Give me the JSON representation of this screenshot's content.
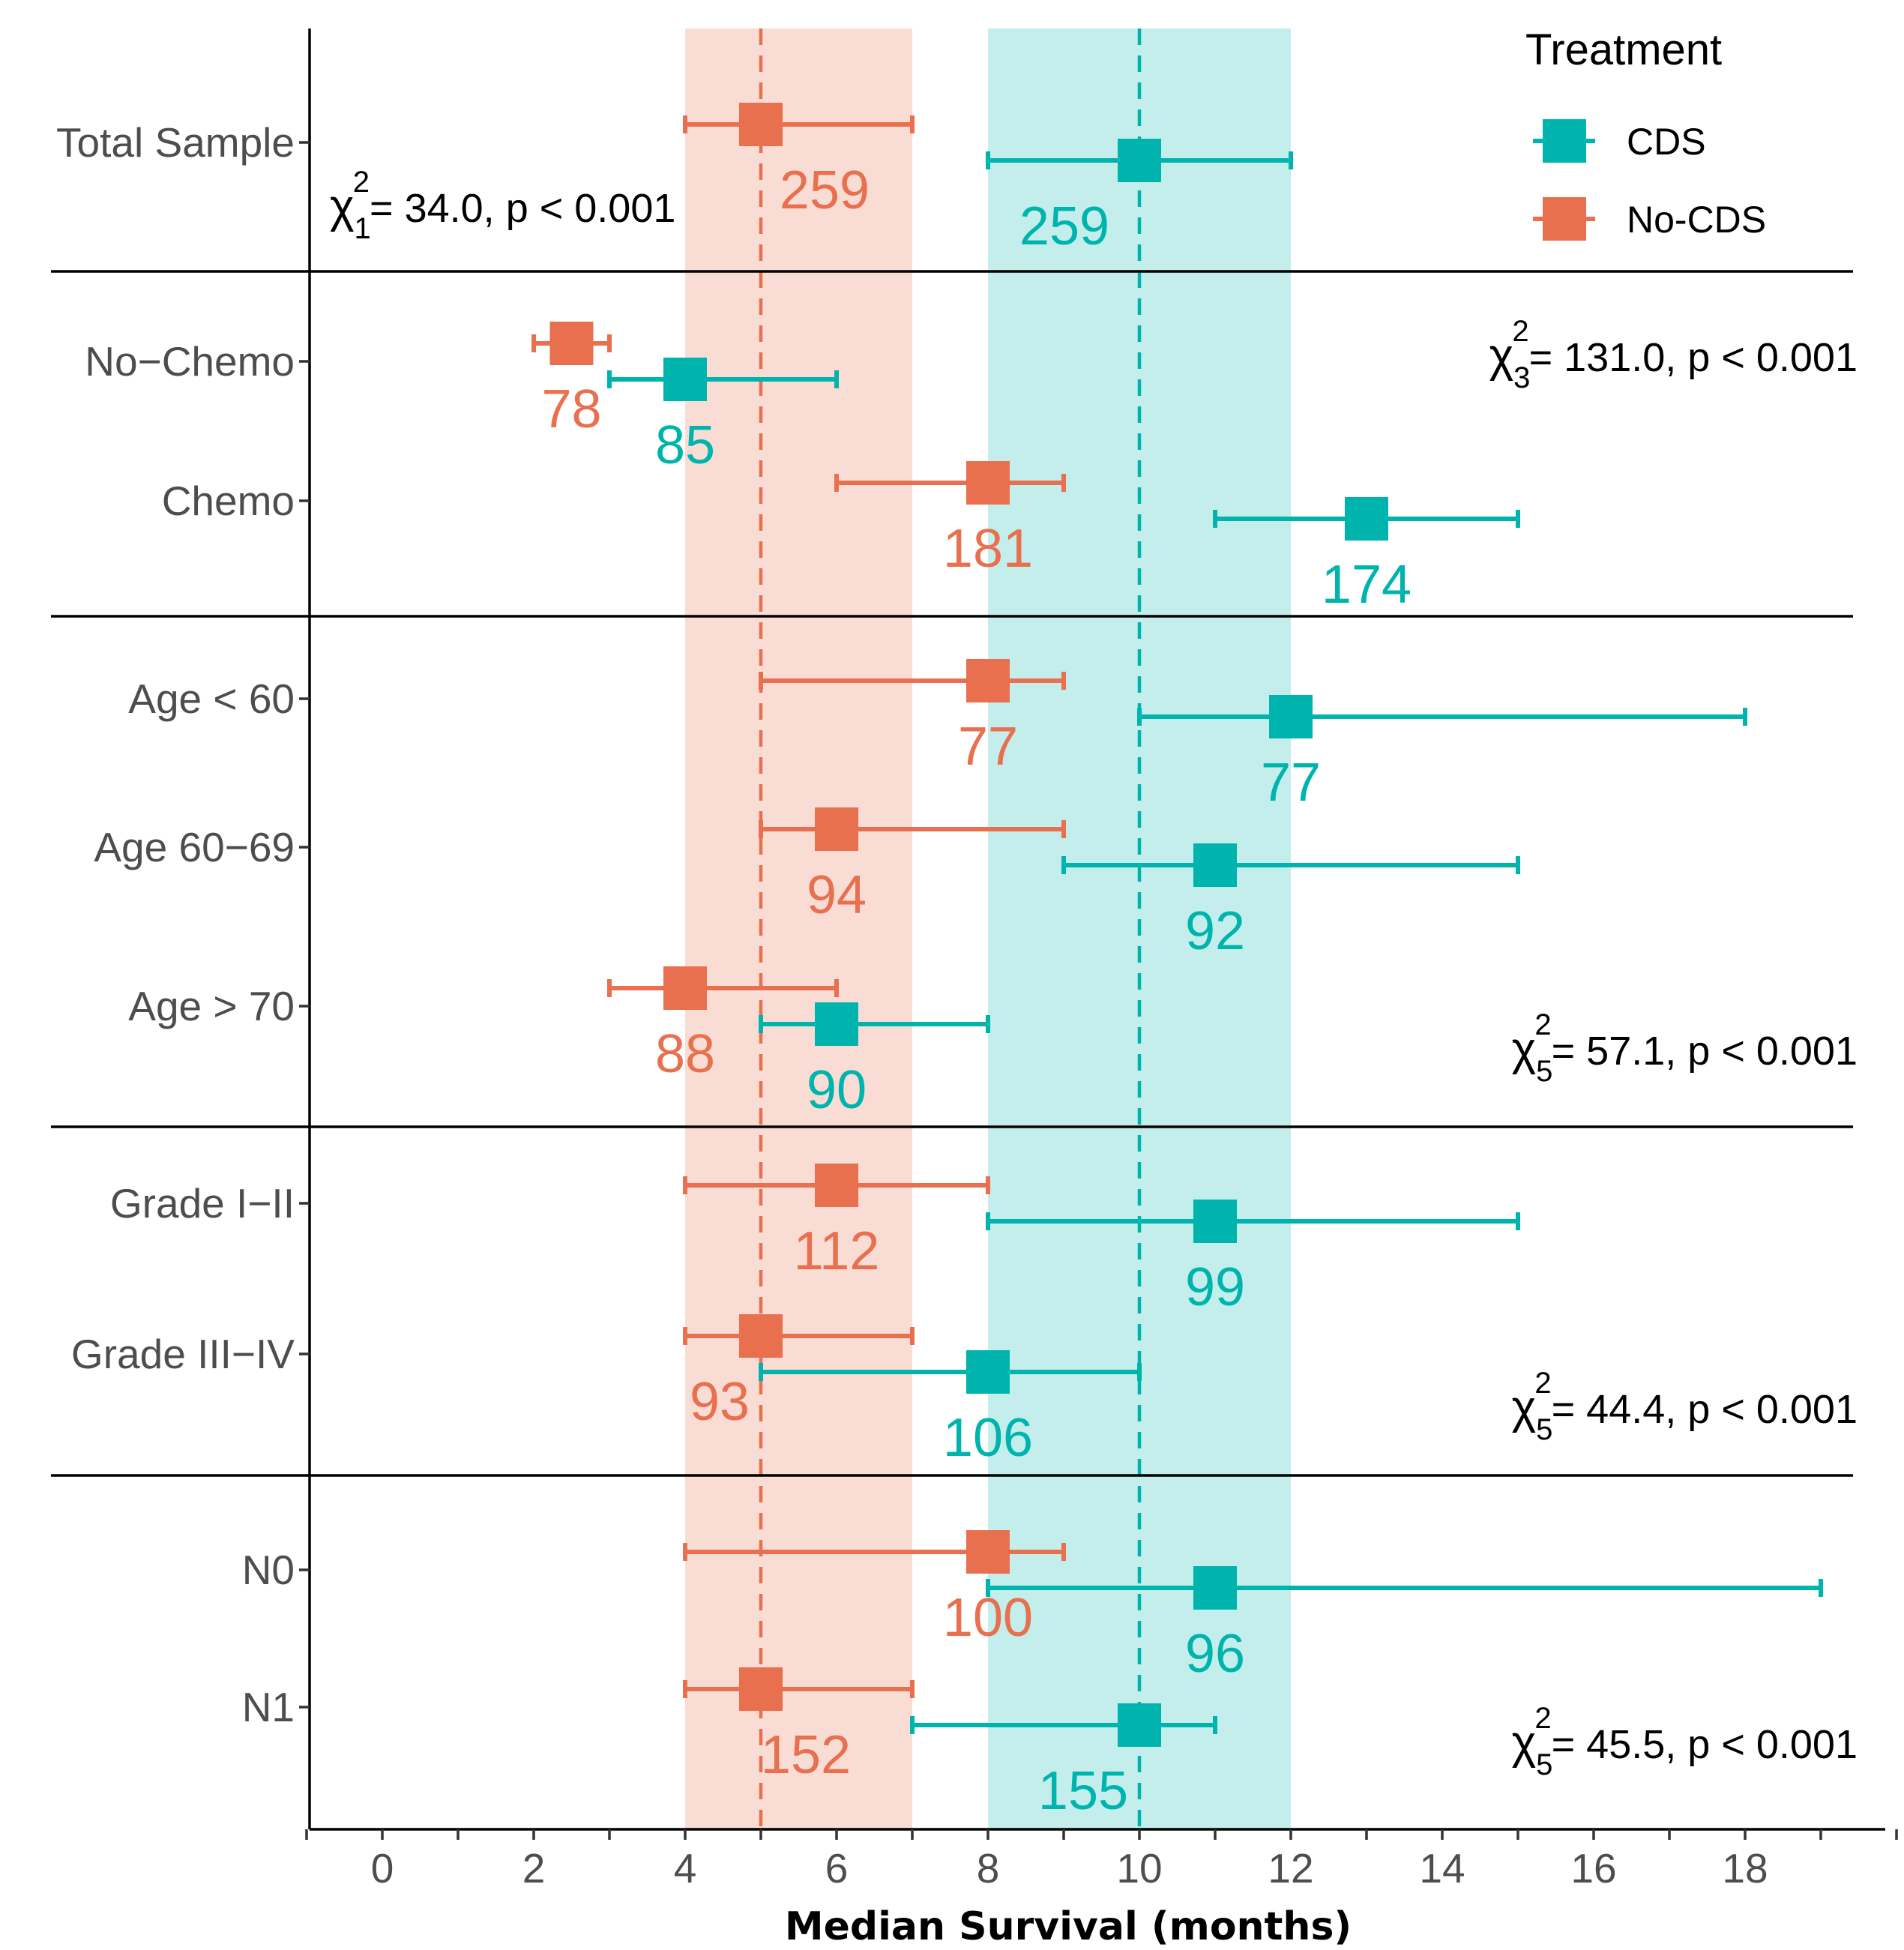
{
  "chart_data": {
    "type": "forest",
    "xlabel": "Median Survival (months)",
    "xlim": [
      -1,
      20
    ],
    "xticks": [
      0,
      2,
      4,
      6,
      8,
      10,
      12,
      14,
      16,
      18
    ],
    "colors": {
      "CDS": "#00B4AE",
      "No-CDS": "#E8704E"
    },
    "bands": [
      {
        "series": "No-CDS",
        "from": 4,
        "to": 7,
        "color": "#F9DDD5"
      },
      {
        "series": "CDS",
        "from": 8,
        "to": 12,
        "color": "#C3EEEC"
      }
    ],
    "reference_lines": [
      {
        "series": "No-CDS",
        "value": 5
      },
      {
        "series": "CDS",
        "value": 10
      }
    ],
    "legend": {
      "title": "Treatment",
      "entries": [
        "CDS",
        "No-CDS"
      ]
    },
    "rows": [
      {
        "label": "Total Sample",
        "points": [
          {
            "series": "No-CDS",
            "median": 5,
            "low": 4,
            "high": 7,
            "n": "259"
          },
          {
            "series": "CDS",
            "median": 10,
            "low": 8,
            "high": 12,
            "n": "259"
          }
        ]
      },
      {
        "label": "No−Chemo",
        "points": [
          {
            "series": "No-CDS",
            "median": 2.5,
            "low": 2,
            "high": 3,
            "n": "78"
          },
          {
            "series": "CDS",
            "median": 4,
            "low": 3,
            "high": 6,
            "n": "85"
          }
        ]
      },
      {
        "label": "Chemo",
        "points": [
          {
            "series": "No-CDS",
            "median": 8,
            "low": 6,
            "high": 9,
            "n": "181"
          },
          {
            "series": "CDS",
            "median": 13,
            "low": 11,
            "high": 15,
            "n": "174"
          }
        ]
      },
      {
        "label": "Age < 60",
        "points": [
          {
            "series": "No-CDS",
            "median": 8,
            "low": 5,
            "high": 9,
            "n": "77"
          },
          {
            "series": "CDS",
            "median": 12,
            "low": 10,
            "high": 18,
            "n": "77"
          }
        ]
      },
      {
        "label": "Age 60−69",
        "points": [
          {
            "series": "No-CDS",
            "median": 6,
            "low": 5,
            "high": 9,
            "n": "94"
          },
          {
            "series": "CDS",
            "median": 11,
            "low": 9,
            "high": 15,
            "n": "92"
          }
        ]
      },
      {
        "label": "Age > 70",
        "points": [
          {
            "series": "No-CDS",
            "median": 4,
            "low": 3,
            "high": 6,
            "n": "88"
          },
          {
            "series": "CDS",
            "median": 6,
            "low": 5,
            "high": 8,
            "n": "90"
          }
        ]
      },
      {
        "label": "Grade I−II",
        "points": [
          {
            "series": "No-CDS",
            "median": 6,
            "low": 4,
            "high": 8,
            "n": "112"
          },
          {
            "series": "CDS",
            "median": 11,
            "low": 8,
            "high": 15,
            "n": "99"
          }
        ]
      },
      {
        "label": "Grade III−IV",
        "points": [
          {
            "series": "No-CDS",
            "median": 5,
            "low": 4,
            "high": 7,
            "n": "93"
          },
          {
            "series": "CDS",
            "median": 8,
            "low": 5,
            "high": 10,
            "n": "106"
          }
        ]
      },
      {
        "label": "N0",
        "points": [
          {
            "series": "No-CDS",
            "median": 8,
            "low": 4,
            "high": 9,
            "n": "100"
          },
          {
            "series": "CDS",
            "median": 11,
            "low": 8,
            "high": 19,
            "n": "96"
          }
        ]
      },
      {
        "label": "N1",
        "points": [
          {
            "series": "No-CDS",
            "median": 5,
            "low": 4,
            "high": 7,
            "n": "152"
          },
          {
            "series": "CDS",
            "median": 10,
            "low": 7,
            "high": 11,
            "n": "155"
          }
        ]
      }
    ],
    "annotations": [
      {
        "chi": "χ",
        "df": "1",
        "sup": "2",
        "text": "= 34.0, p < 0.001"
      },
      {
        "chi": "χ",
        "df": "3",
        "sup": "2",
        "text": "= 131.0, p < 0.001"
      },
      {
        "chi": "χ",
        "df": "5",
        "sup": "2",
        "text": "= 57.1, p < 0.001"
      },
      {
        "chi": "χ",
        "df": "5",
        "sup": "2",
        "text": "= 44.4, p < 0.001"
      },
      {
        "chi": "χ",
        "df": "5",
        "sup": "2",
        "text": "= 45.5, p < 0.001"
      }
    ]
  }
}
